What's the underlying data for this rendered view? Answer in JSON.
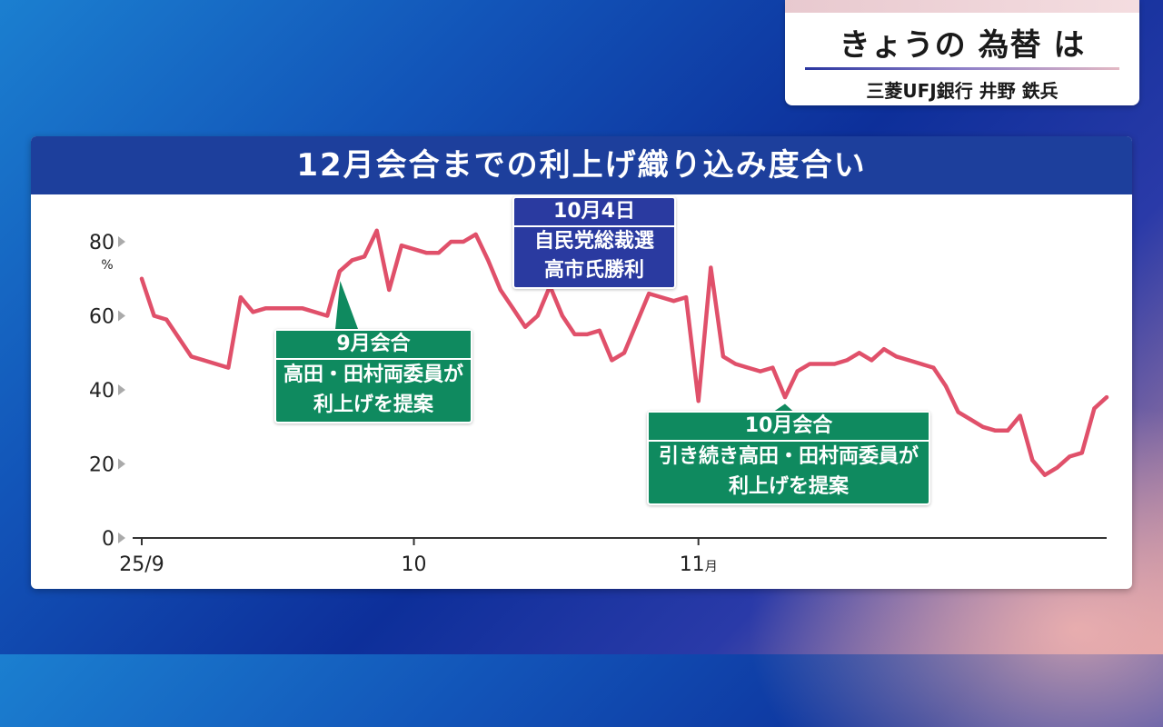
{
  "header": {
    "title": "きょうの 為替 は",
    "subtitle": "三菱UFJ銀行 井野 鉄兵"
  },
  "colors": {
    "line": "#e0506a",
    "header_bg": "#1d3f9c",
    "annotation_green": "#0f8a5f",
    "annotation_blue": "#2a3aa0"
  },
  "chart_data": {
    "type": "line",
    "title": "12月会合までの利上げ織り込み度合い",
    "ylabel": "%",
    "ylim": [
      0,
      80
    ],
    "yticks": [
      "0",
      "20",
      "40",
      "60",
      "80"
    ],
    "xtick_labels": [
      {
        "text": "25/9",
        "index": 0
      },
      {
        "text": "10",
        "index": 22
      },
      {
        "text": "11",
        "unit": "月",
        "index": 45
      }
    ],
    "grid": false,
    "series": [
      {
        "values": [
          70,
          60,
          59,
          54,
          49,
          48,
          47,
          46,
          65,
          61,
          62,
          62,
          62,
          62,
          61,
          60,
          72,
          75,
          76,
          83,
          67,
          79,
          78,
          77,
          77,
          80,
          80,
          82,
          75,
          67,
          62,
          57,
          60,
          68,
          60,
          55,
          55,
          56,
          48,
          50,
          58,
          66,
          65,
          64,
          65,
          37,
          73,
          49,
          47,
          46,
          45,
          46,
          38,
          45,
          47,
          47,
          47,
          48,
          50,
          48,
          51,
          49,
          48,
          47,
          46,
          41,
          34,
          32,
          30,
          29,
          29,
          33,
          21,
          17,
          19,
          22,
          23,
          35,
          38
        ]
      }
    ],
    "annotations": [
      {
        "head": "9月会合",
        "body": [
          "高田・田村両委員が",
          "利上げを提案"
        ],
        "index": 16
      },
      {
        "head": "10月4日",
        "body": [
          "自民党総裁選",
          "高市氏勝利"
        ],
        "index": 29
      },
      {
        "head": "10月会合",
        "body": [
          "引き続き高田・田村両委員が",
          "利上げを提案"
        ],
        "index": 52
      }
    ]
  }
}
